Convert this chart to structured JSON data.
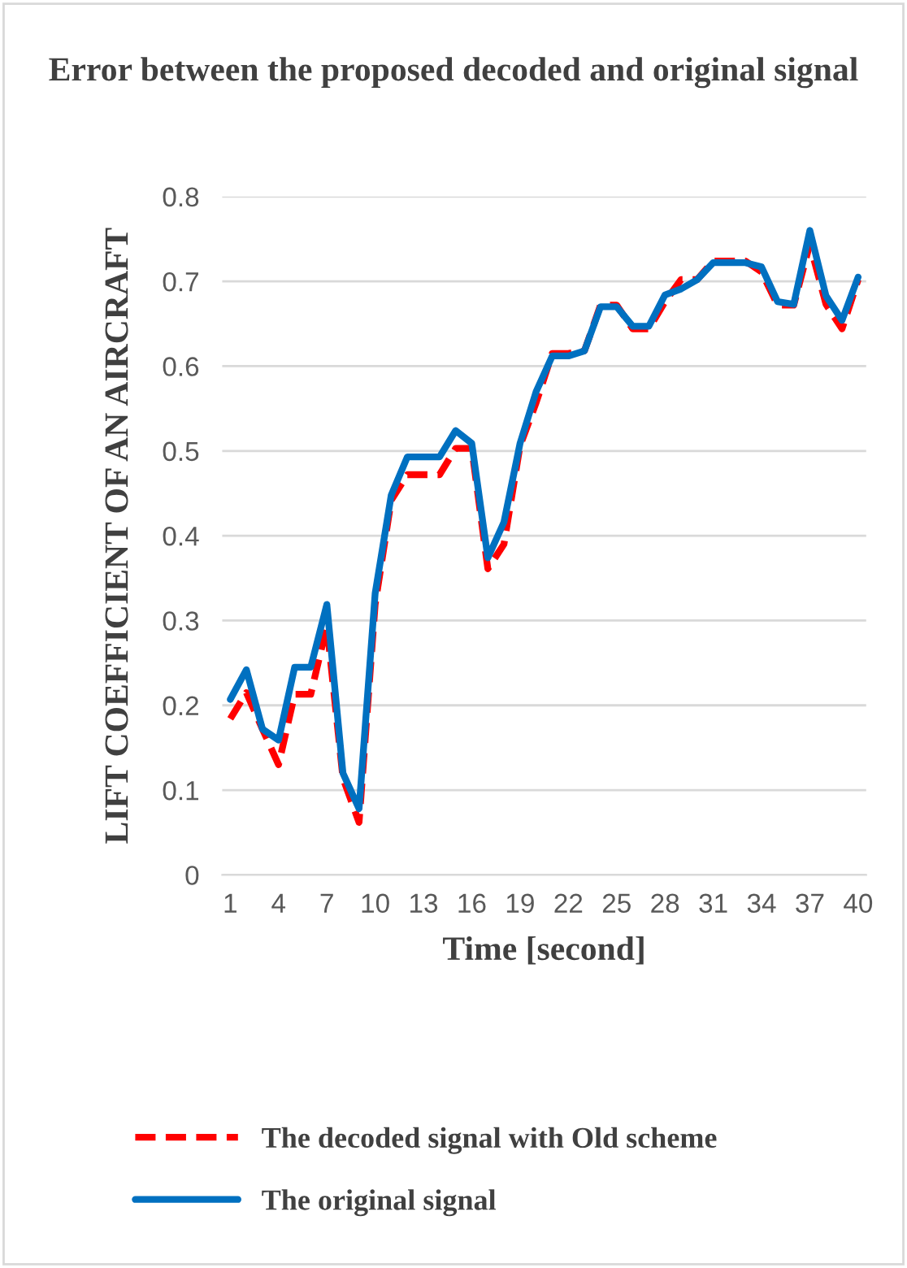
{
  "chart_data": {
    "type": "line",
    "title": "Error between the proposed decoded and original signal",
    "xlabel": "Time [second]",
    "ylabel": "LIFT COEFFICIENT OF AN AIRCRAFT",
    "categories": [
      "1",
      null,
      null,
      "4",
      null,
      null,
      "7",
      null,
      null,
      "10",
      null,
      null,
      "13",
      null,
      null,
      "16",
      null,
      null,
      "19",
      null,
      null,
      "22",
      null,
      null,
      "25",
      null,
      null,
      "28",
      null,
      null,
      "31",
      null,
      null,
      "34",
      null,
      null,
      "37",
      null,
      null,
      "40"
    ],
    "series": [
      {
        "name": "The decoded signal with Old scheme",
        "color": "#ff0000",
        "line_style": "dashed",
        "values": [
          0.184,
          0.215,
          0.172,
          0.13,
          0.213,
          0.213,
          0.294,
          0.114,
          0.062,
          0.319,
          0.442,
          0.472,
          0.472,
          0.472,
          0.503,
          0.503,
          0.361,
          0.39,
          0.506,
          0.557,
          0.615,
          0.615,
          0.618,
          0.672,
          0.672,
          0.644,
          0.644,
          0.676,
          0.702,
          0.702,
          0.724,
          0.724,
          0.724,
          0.711,
          0.672,
          0.672,
          0.744,
          0.673,
          0.644,
          0.702
        ]
      },
      {
        "name": "The original signal",
        "color": "#0070c0",
        "line_style": "solid",
        "values": [
          0.207,
          0.242,
          0.172,
          0.159,
          0.245,
          0.245,
          0.319,
          0.12,
          0.078,
          0.332,
          0.448,
          0.493,
          0.493,
          0.493,
          0.524,
          0.509,
          0.374,
          0.416,
          0.509,
          0.57,
          0.612,
          0.612,
          0.618,
          0.67,
          0.67,
          0.647,
          0.647,
          0.684,
          0.691,
          0.702,
          0.722,
          0.722,
          0.722,
          0.717,
          0.676,
          0.673,
          0.76,
          0.683,
          0.654,
          0.705
        ]
      }
    ],
    "ylim": [
      0,
      0.8
    ],
    "yticks": [
      0,
      0.1,
      0.2,
      0.3,
      0.4,
      0.5,
      0.6,
      0.7,
      0.8
    ],
    "grid": "y",
    "legend": "bottom",
    "marker": "none"
  }
}
